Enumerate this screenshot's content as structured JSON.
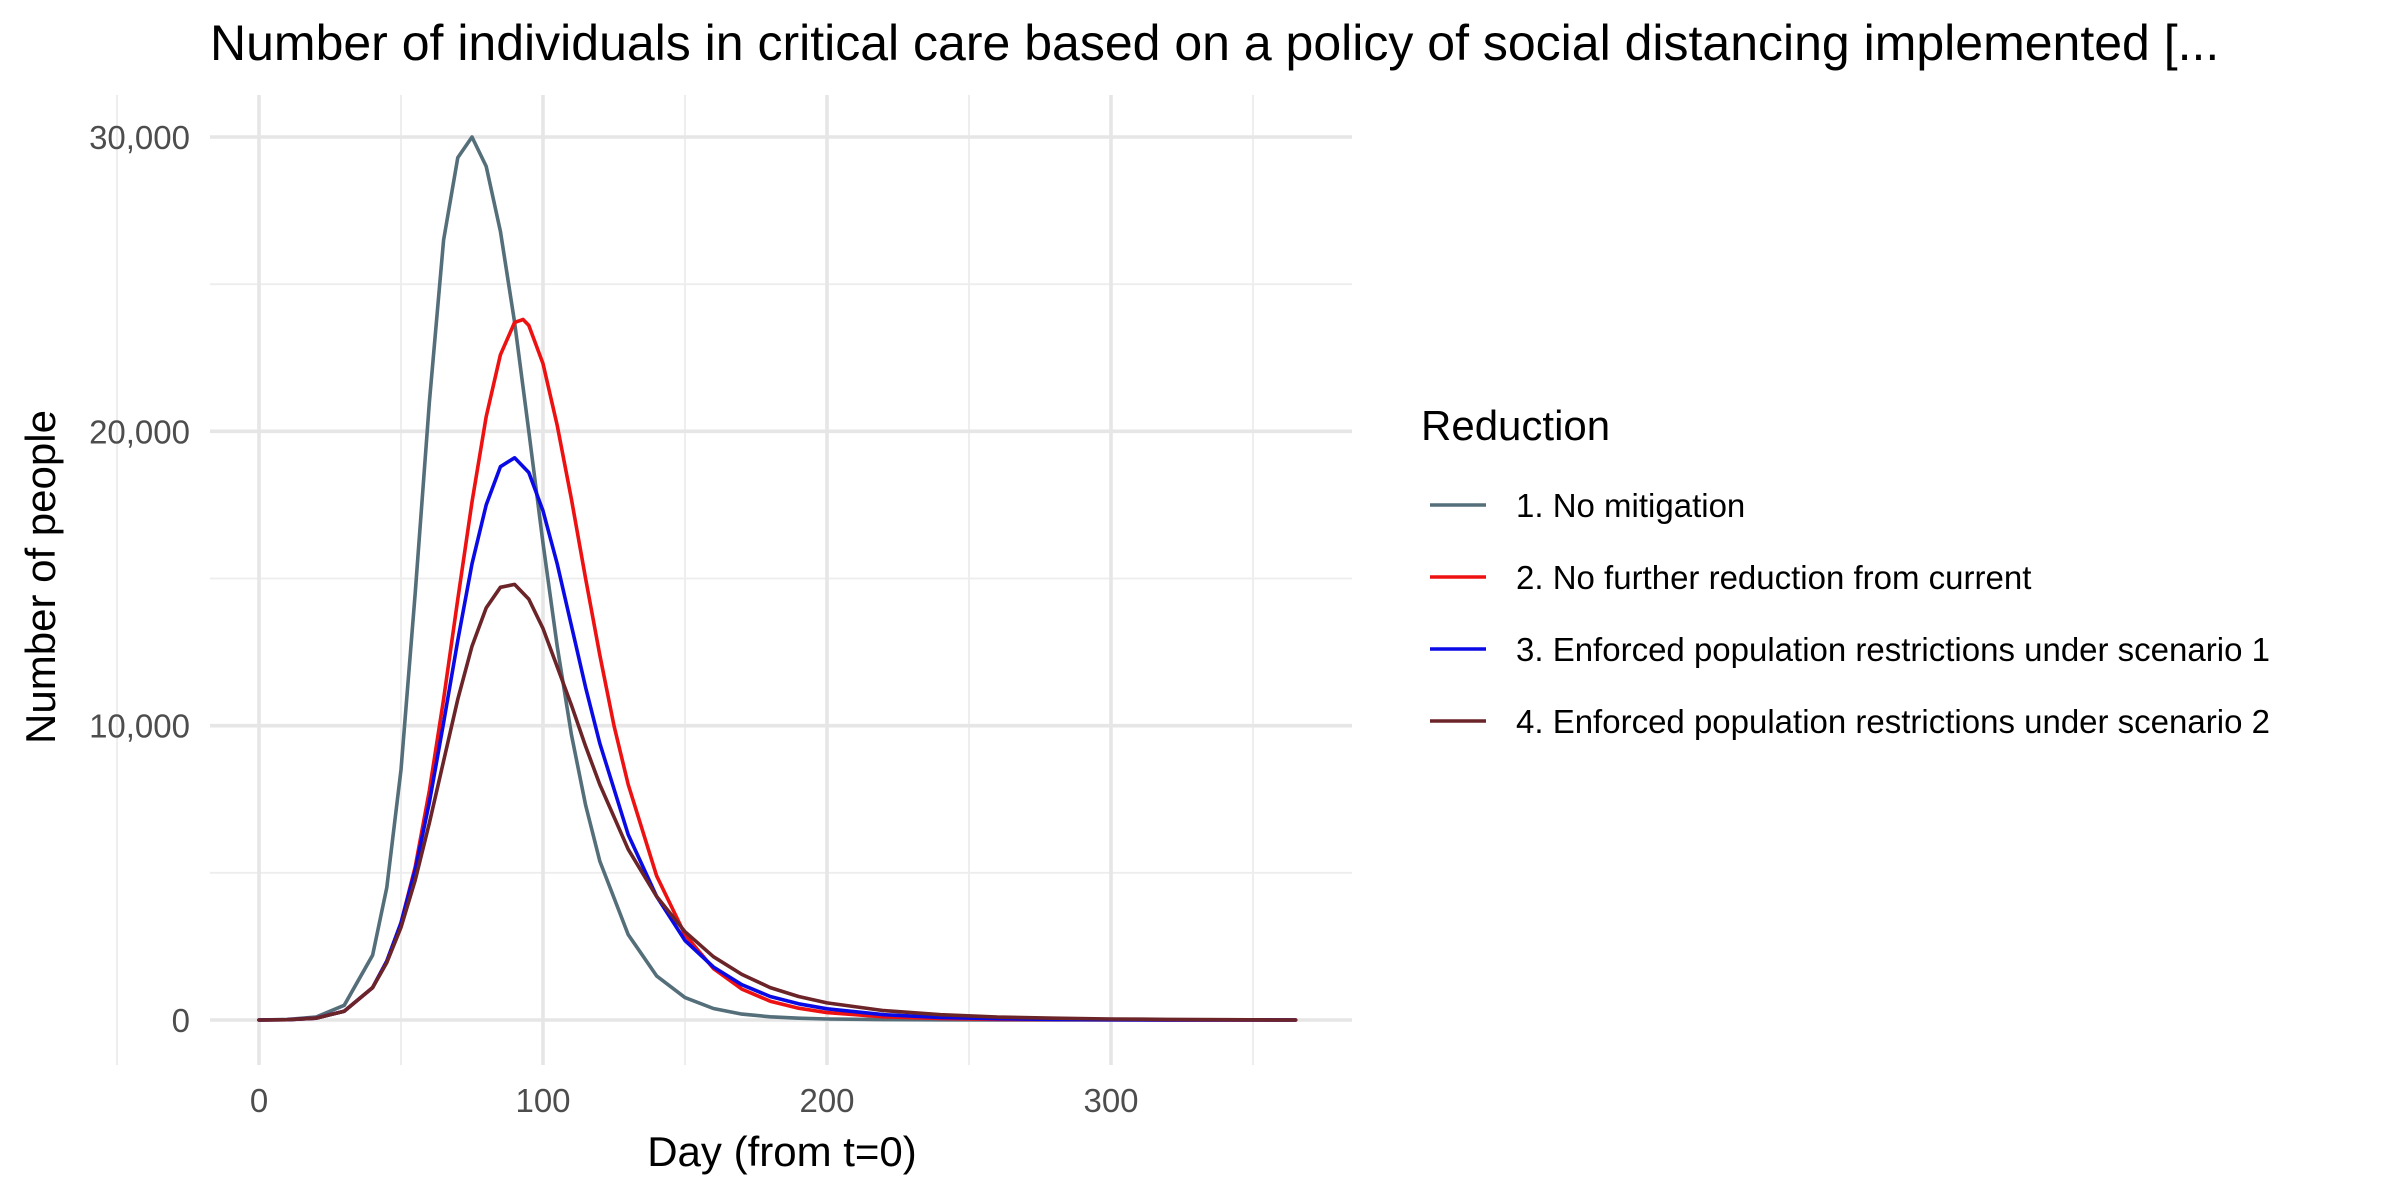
{
  "chart_data": {
    "type": "line",
    "title": "Number of individuals in critical care based on a policy of social distancing implemented [...",
    "xlabel": "Day (from t=0)",
    "ylabel": "Number of people",
    "xlim": [
      0,
      365
    ],
    "ylim": [
      0,
      30000
    ],
    "x_ticks": [
      0,
      100,
      200,
      300
    ],
    "x_tick_labels": [
      "0",
      "100",
      "200",
      "300"
    ],
    "y_ticks": [
      0,
      10000,
      20000,
      30000
    ],
    "y_tick_labels": [
      "0",
      "10,000",
      "20,000",
      "30,000"
    ],
    "grid": true,
    "legend": {
      "title": "Reduction",
      "position": "right"
    },
    "series": [
      {
        "name": "1. No mitigation",
        "color": "#546e7a",
        "x": [
          0,
          10,
          20,
          30,
          40,
          45,
          50,
          55,
          60,
          65,
          70,
          75,
          80,
          85,
          90,
          95,
          100,
          105,
          110,
          115,
          120,
          130,
          140,
          150,
          160,
          170,
          180,
          190,
          200,
          220,
          240,
          260,
          280,
          300,
          320,
          340,
          365
        ],
        "y": [
          0,
          20,
          100,
          500,
          2200,
          4500,
          8500,
          14500,
          21000,
          26500,
          29300,
          30000,
          29000,
          26800,
          23700,
          20000,
          16200,
          12700,
          9700,
          7300,
          5400,
          2900,
          1500,
          760,
          390,
          200,
          110,
          60,
          35,
          15,
          8,
          5,
          3,
          2,
          1,
          0,
          0
        ]
      },
      {
        "name": "2. No further reduction from current",
        "color": "#ee1111",
        "x": [
          0,
          10,
          20,
          30,
          40,
          45,
          50,
          55,
          60,
          65,
          70,
          75,
          80,
          85,
          90,
          93,
          95,
          100,
          105,
          110,
          115,
          120,
          125,
          130,
          140,
          150,
          160,
          170,
          180,
          190,
          200,
          220,
          240,
          260,
          280,
          300,
          320,
          340,
          365
        ],
        "y": [
          0,
          10,
          60,
          300,
          1100,
          2000,
          3300,
          5200,
          7800,
          10900,
          14300,
          17600,
          20500,
          22600,
          23700,
          23800,
          23600,
          22300,
          20200,
          17700,
          15000,
          12400,
          10000,
          8000,
          4900,
          2900,
          1750,
          1050,
          640,
          400,
          250,
          110,
          50,
          25,
          12,
          6,
          3,
          1,
          0
        ]
      },
      {
        "name": "3. Enforced population restrictions under scenario 1",
        "color": "#0a0ae6",
        "x": [
          0,
          10,
          20,
          30,
          40,
          45,
          50,
          55,
          60,
          65,
          70,
          75,
          80,
          85,
          90,
          95,
          100,
          105,
          110,
          115,
          120,
          130,
          140,
          150,
          160,
          170,
          180,
          190,
          200,
          220,
          240,
          260,
          280,
          300,
          320,
          340,
          365
        ],
        "y": [
          0,
          10,
          60,
          300,
          1100,
          2000,
          3300,
          5100,
          7400,
          10100,
          12900,
          15500,
          17500,
          18800,
          19100,
          18600,
          17300,
          15500,
          13400,
          11300,
          9400,
          6300,
          4200,
          2700,
          1800,
          1200,
          800,
          550,
          380,
          180,
          90,
          45,
          22,
          11,
          5,
          2,
          0
        ]
      },
      {
        "name": "4. Enforced population restrictions under scenario 2",
        "color": "#6b2428",
        "x": [
          0,
          10,
          20,
          30,
          40,
          45,
          50,
          55,
          60,
          65,
          70,
          75,
          80,
          85,
          90,
          95,
          100,
          105,
          110,
          115,
          120,
          130,
          140,
          150,
          160,
          170,
          180,
          190,
          200,
          220,
          240,
          260,
          280,
          300,
          320,
          340,
          365
        ],
        "y": [
          0,
          10,
          60,
          300,
          1100,
          1950,
          3150,
          4750,
          6700,
          8800,
          10900,
          12700,
          14000,
          14700,
          14800,
          14300,
          13300,
          12000,
          10700,
          9300,
          8000,
          5800,
          4200,
          3000,
          2150,
          1550,
          1100,
          800,
          580,
          320,
          180,
          100,
          60,
          35,
          20,
          10,
          0
        ]
      }
    ]
  }
}
